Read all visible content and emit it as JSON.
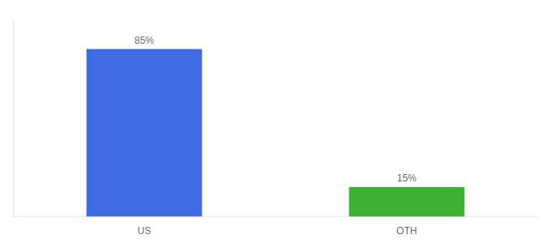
{
  "chart_data": {
    "type": "bar",
    "categories": [
      "US",
      "OTH"
    ],
    "values": [
      85,
      15
    ],
    "value_labels": [
      "85%",
      "15%"
    ],
    "colors": [
      "#4169e1",
      "#3cb034"
    ],
    "ylim": [
      0,
      100
    ],
    "grid": false,
    "data_labels": true,
    "tick_labels": "x"
  }
}
